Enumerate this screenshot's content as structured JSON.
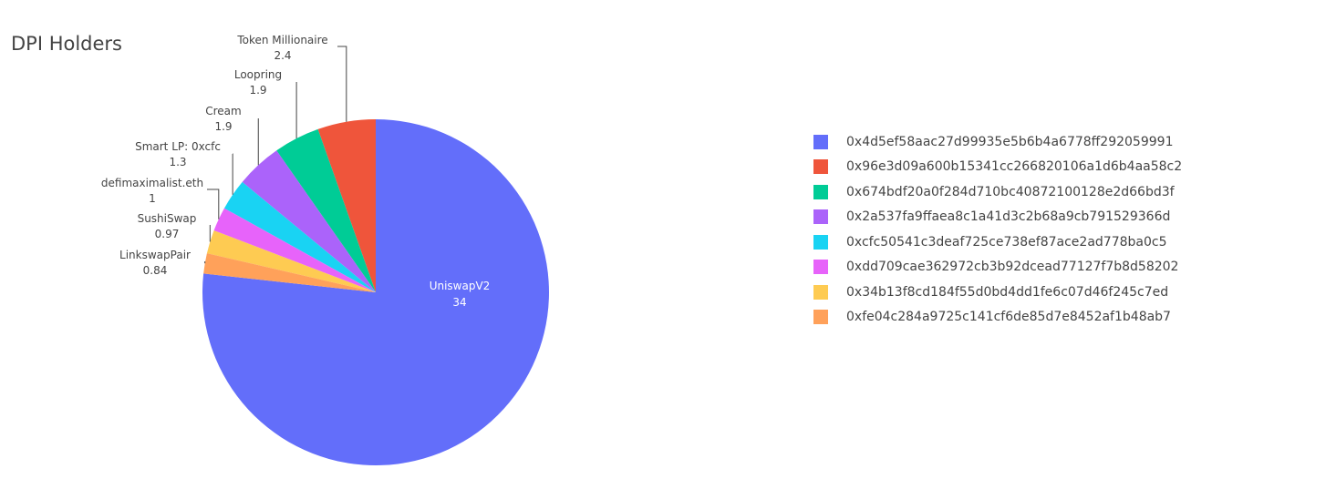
{
  "chart_data": {
    "type": "pie",
    "title": "DPI Holders",
    "values": [
      34,
      2.4,
      1.9,
      1.9,
      1.3,
      1,
      0.97,
      0.84
    ],
    "slice_labels": [
      "UniswapV2",
      "Token Millionaire",
      "Loopring",
      "Cream",
      "Smart LP: 0xcfc",
      "defimaximalist.eth",
      "SushiSwap",
      "LinkswapPair"
    ],
    "value_labels": [
      "34",
      "2.4",
      "1.9",
      "1.9",
      "1.3",
      "1",
      "0.97",
      "0.84"
    ],
    "legend_entries": [
      "0x4d5ef58aac27d99935e5b6b4a6778ff292059991",
      "0x96e3d09a600b15341cc266820106a1d6b4aa58c2",
      "0x674bdf20a0f284d710bc40872100128e2d66bd3f",
      "0x2a537fa9ffaea8c1a41d3c2b68a9cb791529366d",
      "0xcfc50541c3deaf725ce738ef87ace2ad778ba0c5",
      "0xdd709cae362972cb3b92dcead77127f7b8d58202",
      "0x34b13f8cd184f55d0bd4dd1fe6c07d46f245c7ed",
      "0xfe04c284a9725c141cf6de85d7e8452af1b48ab7"
    ],
    "colors": [
      "#636efa",
      "#ef553b",
      "#00cc96",
      "#ab63fa",
      "#19d3f3",
      "#e763fa",
      "#fecb52",
      "#ffa15a"
    ],
    "legend_position": "right"
  }
}
